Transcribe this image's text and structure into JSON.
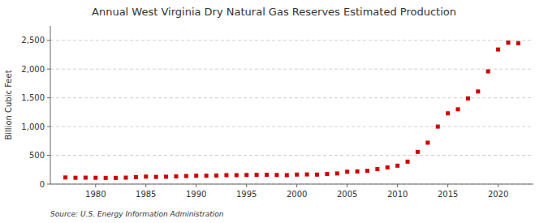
{
  "chart_data": {
    "type": "scatter",
    "title": "Annual West Virginia Dry Natural Gas Reserves Estimated Production",
    "y_label": "Billion Cubic Feet",
    "source": "Source: U.S. Energy Information Administration",
    "x": [
      1977,
      1978,
      1979,
      1980,
      1981,
      1982,
      1983,
      1984,
      1985,
      1986,
      1987,
      1988,
      1989,
      1990,
      1991,
      1992,
      1993,
      1994,
      1995,
      1996,
      1997,
      1998,
      1999,
      2000,
      2001,
      2002,
      2003,
      2004,
      2005,
      2006,
      2007,
      2008,
      2009,
      2010,
      2011,
      2012,
      2013,
      2014,
      2015,
      2016,
      2017,
      2018,
      2019,
      2020,
      2021,
      2022
    ],
    "values": [
      115,
      110,
      112,
      110,
      108,
      108,
      112,
      120,
      130,
      125,
      128,
      133,
      140,
      145,
      145,
      148,
      155,
      155,
      158,
      160,
      162,
      158,
      155,
      165,
      168,
      165,
      175,
      185,
      215,
      220,
      230,
      260,
      290,
      320,
      390,
      560,
      720,
      1000,
      1230,
      1300,
      1490,
      1610,
      1960,
      2340,
      2460,
      2450
    ],
    "color": "#cc0000",
    "marker": "square",
    "xlim": [
      1975.5,
      2023.5
    ],
    "xticks": [
      1980,
      1985,
      1990,
      1995,
      2000,
      2005,
      2010,
      2015,
      2020
    ],
    "ylim": [
      0,
      2750
    ],
    "yticks": [
      0,
      500,
      {
        "value": 1000,
        "label": "1,000"
      },
      {
        "value": 1500,
        "label": "1,500"
      },
      {
        "value": 2000,
        "label": "2,000"
      },
      {
        "value": 2500,
        "label": "2,500"
      }
    ],
    "grid": true
  }
}
